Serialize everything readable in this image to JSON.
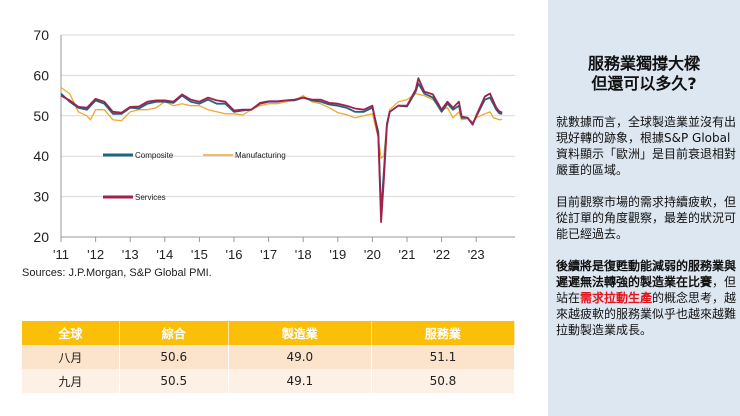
{
  "chart_data": {
    "type": "line",
    "title": "",
    "xlabel": "",
    "ylabel": "",
    "ylim": [
      20,
      70
    ],
    "yticks": [
      20,
      30,
      40,
      50,
      60,
      70
    ],
    "xlim": [
      2011,
      2023.75
    ],
    "xtick_labels": [
      "'11",
      "'12",
      "'13",
      "'14",
      "'15",
      "'16",
      "'17",
      "'18",
      "'19",
      "'20",
      "'21",
      "'22",
      "'23"
    ],
    "grid": "horizontal",
    "legend_placement": "center-left",
    "series": [
      {
        "name": "Composite",
        "color": "#1f6480",
        "points": [
          [
            2011,
            55.5
          ],
          [
            2011.25,
            53.5
          ],
          [
            2011.5,
            52
          ],
          [
            2011.75,
            51.5
          ],
          [
            2012,
            53.8
          ],
          [
            2012.25,
            53
          ],
          [
            2012.5,
            50.5
          ],
          [
            2012.75,
            50.5
          ],
          [
            2013,
            52
          ],
          [
            2013.25,
            51.8
          ],
          [
            2013.5,
            53
          ],
          [
            2013.75,
            53.5
          ],
          [
            2014,
            53.5
          ],
          [
            2014.25,
            53.2
          ],
          [
            2014.5,
            55
          ],
          [
            2014.75,
            53.5
          ],
          [
            2015,
            53
          ],
          [
            2015.25,
            54
          ],
          [
            2015.5,
            53
          ],
          [
            2015.75,
            53
          ],
          [
            2016,
            51
          ],
          [
            2016.25,
            51.3
          ],
          [
            2016.5,
            51.5
          ],
          [
            2016.75,
            53
          ],
          [
            2017,
            53.5
          ],
          [
            2017.25,
            53.5
          ],
          [
            2017.5,
            53.8
          ],
          [
            2017.75,
            53.8
          ],
          [
            2018,
            54.5
          ],
          [
            2018.25,
            53.8
          ],
          [
            2018.5,
            53.5
          ],
          [
            2018.75,
            52.8
          ],
          [
            2019,
            52.5
          ],
          [
            2019.25,
            52
          ],
          [
            2019.5,
            51
          ],
          [
            2019.75,
            51
          ],
          [
            2020,
            52
          ],
          [
            2020.17,
            46
          ],
          [
            2020.25,
            26
          ],
          [
            2020.33,
            36
          ],
          [
            2020.42,
            48
          ],
          [
            2020.5,
            51
          ],
          [
            2020.75,
            52.5
          ],
          [
            2021,
            52.3
          ],
          [
            2021.25,
            56
          ],
          [
            2021.33,
            58
          ],
          [
            2021.5,
            55.5
          ],
          [
            2021.75,
            54.5
          ],
          [
            2022,
            51
          ],
          [
            2022.17,
            53
          ],
          [
            2022.33,
            51.5
          ],
          [
            2022.5,
            52.5
          ],
          [
            2022.58,
            49.5
          ],
          [
            2022.75,
            49.5
          ],
          [
            2022.9,
            48
          ],
          [
            2023,
            49.8
          ],
          [
            2023.25,
            54
          ],
          [
            2023.4,
            54.5
          ],
          [
            2023.58,
            51.5
          ],
          [
            2023.67,
            50.6
          ],
          [
            2023.75,
            50.5
          ]
        ]
      },
      {
        "name": "Manufacturing",
        "color": "#f0a830",
        "points": [
          [
            2011,
            57
          ],
          [
            2011.25,
            55.5
          ],
          [
            2011.5,
            51
          ],
          [
            2011.75,
            50
          ],
          [
            2011.85,
            49
          ],
          [
            2012,
            51.5
          ],
          [
            2012.25,
            51.5
          ],
          [
            2012.5,
            49
          ],
          [
            2012.75,
            48.8
          ],
          [
            2013,
            51
          ],
          [
            2013.25,
            51.5
          ],
          [
            2013.5,
            51.5
          ],
          [
            2013.75,
            52
          ],
          [
            2014,
            53.5
          ],
          [
            2014.25,
            52.5
          ],
          [
            2014.5,
            53
          ],
          [
            2014.75,
            52.5
          ],
          [
            2015,
            52.5
          ],
          [
            2015.25,
            51.5
          ],
          [
            2015.5,
            51
          ],
          [
            2015.75,
            50.5
          ],
          [
            2016,
            50.5
          ],
          [
            2016.25,
            50.2
          ],
          [
            2016.5,
            51.5
          ],
          [
            2016.75,
            52.5
          ],
          [
            2017,
            53
          ],
          [
            2017.25,
            53
          ],
          [
            2017.5,
            53.5
          ],
          [
            2017.75,
            53.8
          ],
          [
            2018,
            55
          ],
          [
            2018.25,
            53.5
          ],
          [
            2018.5,
            53
          ],
          [
            2018.75,
            52
          ],
          [
            2019,
            50.8
          ],
          [
            2019.25,
            50.3
          ],
          [
            2019.5,
            49.5
          ],
          [
            2019.75,
            50
          ],
          [
            2020,
            50.5
          ],
          [
            2020.17,
            44.5
          ],
          [
            2020.25,
            39.5
          ],
          [
            2020.33,
            40
          ],
          [
            2020.42,
            48
          ],
          [
            2020.5,
            51.5
          ],
          [
            2020.75,
            53.5
          ],
          [
            2021,
            54
          ],
          [
            2021.25,
            55.5
          ],
          [
            2021.5,
            55
          ],
          [
            2021.75,
            54
          ],
          [
            2022,
            51.5
          ],
          [
            2022.17,
            52
          ],
          [
            2022.33,
            49.5
          ],
          [
            2022.5,
            51
          ],
          [
            2022.58,
            49
          ],
          [
            2022.75,
            49.3
          ],
          [
            2022.9,
            48.5
          ],
          [
            2023,
            49.5
          ],
          [
            2023.25,
            50.5
          ],
          [
            2023.4,
            51
          ],
          [
            2023.5,
            49.5
          ],
          [
            2023.67,
            49.0
          ],
          [
            2023.75,
            49.1
          ]
        ]
      },
      {
        "name": "Services",
        "color": "#a0204e",
        "points": [
          [
            2011,
            55
          ],
          [
            2011.25,
            53.8
          ],
          [
            2011.5,
            52.2
          ],
          [
            2011.75,
            52
          ],
          [
            2012,
            54.2
          ],
          [
            2012.25,
            53.5
          ],
          [
            2012.5,
            51
          ],
          [
            2012.75,
            50.8
          ],
          [
            2013,
            52.2
          ],
          [
            2013.25,
            52.3
          ],
          [
            2013.5,
            53.5
          ],
          [
            2013.75,
            53.8
          ],
          [
            2014,
            53.8
          ],
          [
            2014.25,
            53.5
          ],
          [
            2014.5,
            55.3
          ],
          [
            2014.75,
            54
          ],
          [
            2015,
            53.5
          ],
          [
            2015.25,
            54.5
          ],
          [
            2015.5,
            53.8
          ],
          [
            2015.75,
            53.5
          ],
          [
            2016,
            51.3
          ],
          [
            2016.25,
            51.5
          ],
          [
            2016.5,
            51.5
          ],
          [
            2016.75,
            53.2
          ],
          [
            2017,
            53.6
          ],
          [
            2017.25,
            53.6
          ],
          [
            2017.5,
            53.8
          ],
          [
            2017.75,
            54
          ],
          [
            2018,
            54.5
          ],
          [
            2018.25,
            54
          ],
          [
            2018.5,
            54
          ],
          [
            2018.75,
            53.2
          ],
          [
            2019,
            53
          ],
          [
            2019.25,
            52.5
          ],
          [
            2019.5,
            51.8
          ],
          [
            2019.75,
            51.5
          ],
          [
            2020,
            52.5
          ],
          [
            2020.17,
            45
          ],
          [
            2020.25,
            23.7
          ],
          [
            2020.33,
            34
          ],
          [
            2020.42,
            47.5
          ],
          [
            2020.5,
            51
          ],
          [
            2020.75,
            52.5
          ],
          [
            2021,
            52.5
          ],
          [
            2021.25,
            56.5
          ],
          [
            2021.33,
            59.3
          ],
          [
            2021.5,
            56
          ],
          [
            2021.75,
            55.3
          ],
          [
            2022,
            51.5
          ],
          [
            2022.17,
            53.5
          ],
          [
            2022.33,
            52
          ],
          [
            2022.5,
            53.5
          ],
          [
            2022.58,
            49.8
          ],
          [
            2022.75,
            49.5
          ],
          [
            2022.9,
            47.8
          ],
          [
            2023,
            50
          ],
          [
            2023.25,
            54.8
          ],
          [
            2023.4,
            55.5
          ],
          [
            2023.58,
            52
          ],
          [
            2023.67,
            51.1
          ],
          [
            2023.75,
            50.8
          ]
        ]
      }
    ]
  },
  "source": "Sources: J.P.Morgan, S&P Global PMI.",
  "table": {
    "headers": [
      "全球",
      "綜合",
      "製造業",
      "服務業"
    ],
    "rows": [
      [
        "八月",
        "50.6",
        "49.0",
        "51.1"
      ],
      [
        "九月",
        "50.5",
        "49.1",
        "50.8"
      ]
    ]
  },
  "panel": {
    "title_line1": "服務業獨撐大樑",
    "title_line2": "但還可以多久?",
    "para1": "就數據而言，全球製造業並沒有出現好轉的跡象，根據S&P Global資料顯示「歐洲」是目前衰退相對嚴重的區域。",
    "para2": "目前觀察市場的需求持續疲軟，但從訂單的角度觀察，最差的狀況可能已經過去。",
    "para3_bold": "後續將是復甦動能減弱的服務業與遲遲無法轉強的製造業在比賽",
    "para3_mid": "，但站在",
    "para3_red": "需求拉動生產",
    "para3_end": "的概念思考，越來越疲軟的服務業似乎也越來越難拉動製造業成長。",
    "accent_red": "#e5141b",
    "background": "#dde7f2"
  }
}
